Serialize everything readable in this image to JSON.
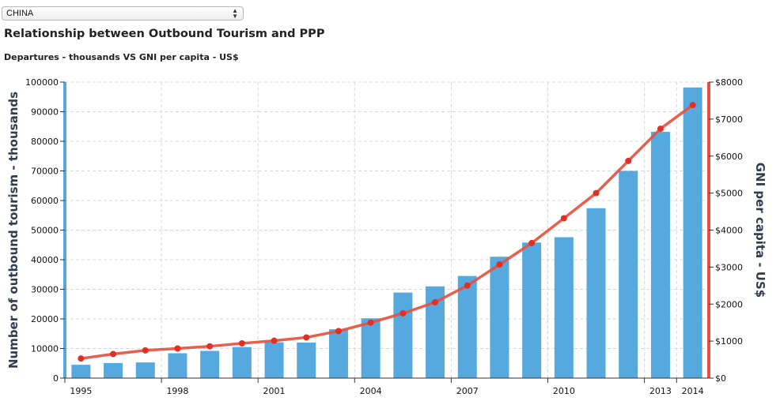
{
  "selector": {
    "value": "CHINA"
  },
  "chart_data": {
    "type": "bar+line",
    "title": "Relationship between Outbound Tourism and PPP",
    "subtitle": "Departures - thousands VS GNI per capita - US$",
    "ylabel_left": "Number of outbound tourism - thousands",
    "ylabel_right": "GNI per capita - US$",
    "years": [
      1995,
      1996,
      1997,
      1998,
      1999,
      2000,
      2001,
      2002,
      2003,
      2004,
      2005,
      2006,
      2007,
      2008,
      2009,
      2010,
      2011,
      2012,
      2013,
      2014
    ],
    "x_tick_labels": [
      "1995",
      "1998",
      "2001",
      "2004",
      "2007",
      "2010",
      "2013",
      "2014"
    ],
    "series": [
      {
        "values": [
          4500,
          5100,
          5300,
          8400,
          9200,
          10500,
          12100,
          12000,
          16500,
          20200,
          28900,
          31000,
          34500,
          41000,
          45800,
          47600,
          57400,
          70000,
          83200,
          98200
        ],
        "color": "#55a9df",
        "axis": "left",
        "kind": "bar"
      },
      {
        "values": [
          530,
          650,
          750,
          800,
          860,
          940,
          1010,
          1100,
          1270,
          1500,
          1750,
          2050,
          2500,
          3070,
          3650,
          4320,
          5000,
          5870,
          6740,
          7380
        ],
        "color": "#e8503f",
        "axis": "right",
        "kind": "line"
      }
    ],
    "left_axis": {
      "min": 0,
      "max": 100000,
      "ticks": [
        "0",
        "10000",
        "20000",
        "30000",
        "40000",
        "50000",
        "60000",
        "70000",
        "80000",
        "90000",
        "100000"
      ]
    },
    "right_axis": {
      "min": 0,
      "max": 8000,
      "ticks": [
        "$0",
        "$1000",
        "$2000",
        "$3000",
        "$4000",
        "$5000",
        "$6000",
        "$7000",
        "$8000"
      ]
    },
    "grid": true
  }
}
